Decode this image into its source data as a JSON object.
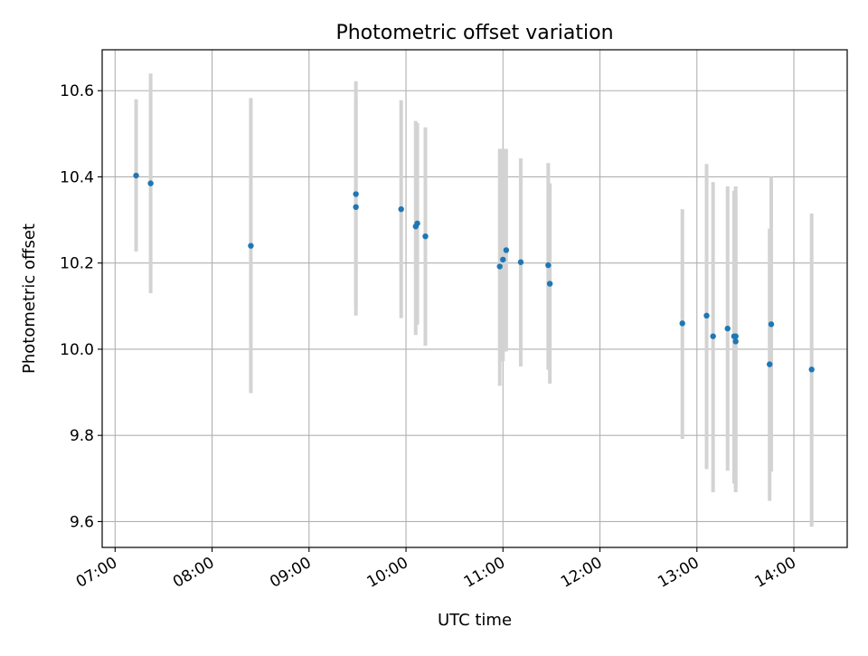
{
  "chart_data": {
    "type": "scatter",
    "title": "Photometric offset variation",
    "xlabel": "UTC time",
    "ylabel": "Photometric offset",
    "xlim": [
      "06:52",
      "14:33"
    ],
    "ylim": [
      9.54,
      10.695
    ],
    "xticks": [
      "07:00",
      "08:00",
      "09:00",
      "10:00",
      "11:00",
      "12:00",
      "13:00",
      "14:00"
    ],
    "yticks": [
      9.6,
      9.8,
      10.0,
      10.2,
      10.4,
      10.6
    ],
    "grid": true,
    "legend": "none",
    "colors": {
      "point": "#1f77b4",
      "errorbar": "#d3d3d3",
      "grid": "#b0b0b0"
    },
    "points": [
      {
        "t": "07:13",
        "y": 10.403,
        "lo": 10.227,
        "hi": 10.58
      },
      {
        "t": "07:22",
        "y": 10.385,
        "lo": 10.13,
        "hi": 10.64
      },
      {
        "t": "08:24",
        "y": 10.24,
        "lo": 9.898,
        "hi": 10.583
      },
      {
        "t": "09:29",
        "y": 10.36,
        "lo": 10.098,
        "hi": 10.622
      },
      {
        "t": "09:29",
        "y": 10.33,
        "lo": 10.078,
        "hi": 10.582
      },
      {
        "t": "09:57",
        "y": 10.325,
        "lo": 10.072,
        "hi": 10.578
      },
      {
        "t": "10:06",
        "y": 10.285,
        "lo": 10.033,
        "hi": 10.53
      },
      {
        "t": "10:07",
        "y": 10.292,
        "lo": 10.057,
        "hi": 10.525
      },
      {
        "t": "10:12",
        "y": 10.262,
        "lo": 10.008,
        "hi": 10.515
      },
      {
        "t": "10:58",
        "y": 10.192,
        "lo": 9.915,
        "hi": 10.465
      },
      {
        "t": "11:00",
        "y": 10.208,
        "lo": 9.972,
        "hi": 10.465
      },
      {
        "t": "11:02",
        "y": 10.23,
        "lo": 9.995,
        "hi": 10.465
      },
      {
        "t": "11:11",
        "y": 10.202,
        "lo": 9.96,
        "hi": 10.443
      },
      {
        "t": "11:28",
        "y": 10.195,
        "lo": 9.952,
        "hi": 10.432
      },
      {
        "t": "11:29",
        "y": 10.152,
        "lo": 9.92,
        "hi": 10.385
      },
      {
        "t": "12:51",
        "y": 10.06,
        "lo": 9.792,
        "hi": 10.325
      },
      {
        "t": "13:06",
        "y": 10.078,
        "lo": 9.722,
        "hi": 10.43
      },
      {
        "t": "13:10",
        "y": 10.03,
        "lo": 9.668,
        "hi": 10.388
      },
      {
        "t": "13:19",
        "y": 10.048,
        "lo": 9.718,
        "hi": 10.378
      },
      {
        "t": "13:23",
        "y": 10.03,
        "lo": 9.688,
        "hi": 10.368
      },
      {
        "t": "13:24",
        "y": 10.03,
        "lo": 9.668,
        "hi": 10.378
      },
      {
        "t": "13:24",
        "y": 10.018,
        "lo": 9.678,
        "hi": 10.36
      },
      {
        "t": "13:45",
        "y": 9.965,
        "lo": 9.648,
        "hi": 10.28
      },
      {
        "t": "13:46",
        "y": 10.058,
        "lo": 9.716,
        "hi": 10.4
      },
      {
        "t": "14:11",
        "y": 9.953,
        "lo": 9.588,
        "hi": 10.315
      }
    ]
  }
}
